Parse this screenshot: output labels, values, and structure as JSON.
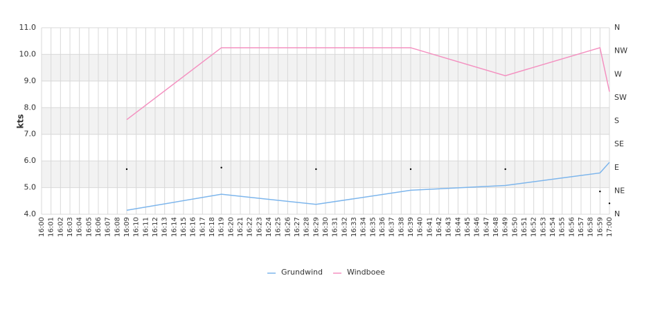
{
  "chart_data": {
    "type": "line",
    "y_label": "kts",
    "categories": [
      "16:00",
      "16:01",
      "16:02",
      "16:03",
      "16:04",
      "16:05",
      "16:06",
      "16:07",
      "16:08",
      "16:09",
      "16:10",
      "16:11",
      "16:12",
      "16:13",
      "16:14",
      "16:15",
      "16:16",
      "16:17",
      "16:18",
      "16:19",
      "16:20",
      "16:21",
      "16:22",
      "16:23",
      "16:24",
      "16:25",
      "16:26",
      "16:27",
      "16:28",
      "16:29",
      "16:30",
      "16:31",
      "16:32",
      "16:33",
      "16:34",
      "16:35",
      "16:36",
      "16:37",
      "16:38",
      "16:39",
      "16:40",
      "16:41",
      "16:42",
      "16:43",
      "16:44",
      "16:45",
      "16:46",
      "16:47",
      "16:48",
      "16:49",
      "16:50",
      "16:51",
      "16:52",
      "16:53",
      "16:54",
      "16:55",
      "16:56",
      "16:57",
      "16:58",
      "16:59",
      "17:00"
    ],
    "series": [
      {
        "name": "Grundwind",
        "color": "#7cb5ec",
        "values": [
          null,
          null,
          null,
          null,
          null,
          null,
          null,
          null,
          null,
          4.15,
          null,
          null,
          null,
          null,
          null,
          null,
          null,
          null,
          null,
          4.75,
          null,
          null,
          null,
          null,
          null,
          null,
          null,
          null,
          null,
          4.37,
          null,
          null,
          null,
          null,
          null,
          null,
          null,
          null,
          null,
          4.9,
          null,
          null,
          null,
          null,
          null,
          null,
          null,
          null,
          null,
          5.08,
          null,
          null,
          null,
          null,
          null,
          null,
          null,
          null,
          null,
          5.55,
          5.95
        ]
      },
      {
        "name": "Windboee",
        "color": "#f490c0",
        "values": [
          null,
          null,
          null,
          null,
          null,
          null,
          null,
          null,
          null,
          7.55,
          null,
          null,
          null,
          null,
          null,
          null,
          null,
          null,
          null,
          10.25,
          null,
          null,
          null,
          null,
          null,
          null,
          null,
          null,
          null,
          10.25,
          null,
          null,
          null,
          null,
          null,
          null,
          null,
          null,
          null,
          10.25,
          null,
          null,
          null,
          null,
          null,
          null,
          null,
          null,
          null,
          9.2,
          null,
          null,
          null,
          null,
          null,
          null,
          null,
          null,
          null,
          10.25,
          8.6
        ]
      }
    ],
    "direction": {
      "axis": "y2",
      "color": "#000000",
      "values": [
        null,
        null,
        null,
        null,
        null,
        null,
        null,
        null,
        null,
        87,
        null,
        null,
        null,
        null,
        null,
        null,
        null,
        null,
        null,
        90,
        null,
        null,
        null,
        null,
        null,
        null,
        null,
        null,
        null,
        87,
        null,
        null,
        null,
        null,
        null,
        null,
        null,
        null,
        null,
        87,
        null,
        null,
        null,
        null,
        null,
        null,
        null,
        null,
        null,
        87,
        null,
        null,
        null,
        null,
        null,
        null,
        null,
        null,
        null,
        44,
        21
      ]
    },
    "connect_nulls": true,
    "ylim": [
      4,
      11
    ],
    "yticks": [
      {
        "value": 4,
        "label": "4.0"
      },
      {
        "value": 5,
        "label": "5.0"
      },
      {
        "value": 6,
        "label": "6.0"
      },
      {
        "value": 7,
        "label": "7.0"
      },
      {
        "value": 8,
        "label": "8.0"
      },
      {
        "value": 9,
        "label": "9.0"
      },
      {
        "value": 10,
        "label": "10.0"
      },
      {
        "value": 11,
        "label": "11.0"
      }
    ],
    "y2lim": [
      0,
      360
    ],
    "y2ticks": [
      {
        "value": 0,
        "label": "N"
      },
      {
        "value": 45,
        "label": "NE"
      },
      {
        "value": 90,
        "label": "E"
      },
      {
        "value": 135,
        "label": "SE"
      },
      {
        "value": 180,
        "label": "S"
      },
      {
        "value": 225,
        "label": "SW"
      },
      {
        "value": 270,
        "label": "W"
      },
      {
        "value": 315,
        "label": "NW"
      },
      {
        "value": 360,
        "label": "N"
      }
    ],
    "grid": true,
    "bands": [
      [
        5,
        6
      ],
      [
        7,
        8
      ],
      [
        9,
        10
      ]
    ],
    "band_color": "#f2f2f2",
    "legend": "bottom"
  }
}
